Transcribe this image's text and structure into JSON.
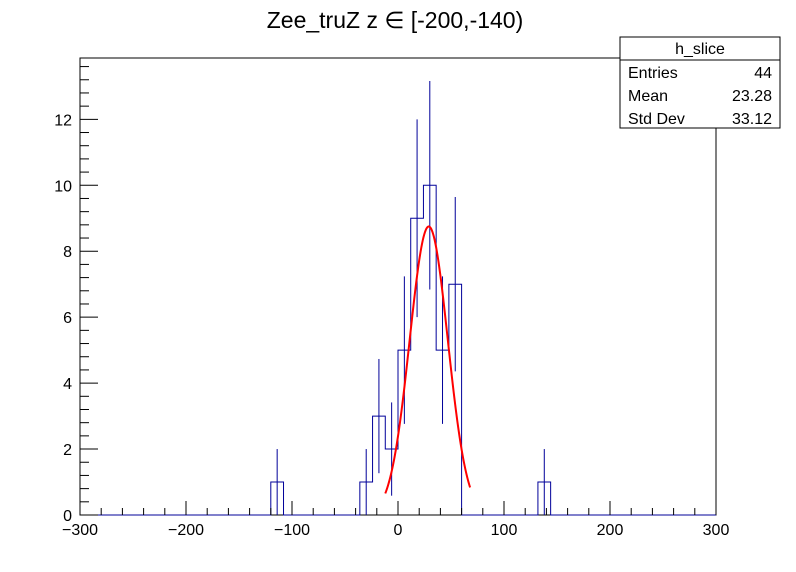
{
  "chart_data": {
    "type": "histogram",
    "title": "Zee_truZ z  ∈ [-200,-140)",
    "xlabel": "",
    "ylabel": "",
    "xlim": [
      -300,
      300
    ],
    "ylim": [
      0,
      13.86
    ],
    "x_ticks": [
      -300,
      -200,
      -100,
      0,
      100,
      200,
      300
    ],
    "y_ticks": [
      0,
      2,
      4,
      6,
      8,
      10,
      12
    ],
    "bin_width": 12,
    "bins": [
      {
        "lo": -120,
        "hi": -108,
        "count": 1
      },
      {
        "lo": -36,
        "hi": -24,
        "count": 1
      },
      {
        "lo": -24,
        "hi": -12,
        "count": 3
      },
      {
        "lo": -12,
        "hi": 0,
        "count": 2
      },
      {
        "lo": 0,
        "hi": 12,
        "count": 5
      },
      {
        "lo": 12,
        "hi": 24,
        "count": 9
      },
      {
        "lo": 24,
        "hi": 36,
        "count": 10
      },
      {
        "lo": 36,
        "hi": 48,
        "count": 5
      },
      {
        "lo": 48,
        "hi": 60,
        "count": 7
      },
      {
        "lo": 132,
        "hi": 144,
        "count": 1
      }
    ],
    "fit": {
      "type": "gaussian",
      "amplitude": 8.75,
      "mean": 29,
      "sigma": 18,
      "range": [
        -12,
        68
      ],
      "color": "#ff0000"
    },
    "hist_color": "#000099",
    "grid": false,
    "stats_box": {
      "title": "h_slice",
      "rows": [
        {
          "label": "Entries",
          "value": "44"
        },
        {
          "label": "Mean",
          "value": "23.28"
        },
        {
          "label": "Std Dev",
          "value": "33.12"
        }
      ]
    }
  }
}
